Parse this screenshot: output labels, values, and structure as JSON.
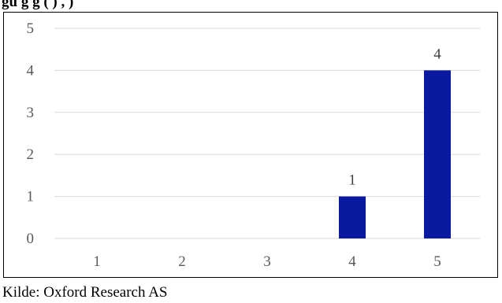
{
  "header": {
    "title_fragment": "gu           g        g (     )        , )"
  },
  "source_note": "Kilde: Oxford Research AS",
  "colors": {
    "bar": "#0A1AA0",
    "grid": "#D9D9D9",
    "axis_text": "#595959"
  },
  "chart_data": {
    "type": "bar",
    "categories": [
      "1",
      "2",
      "3",
      "4",
      "5"
    ],
    "series": [
      {
        "values": [
          0,
          0,
          0,
          1,
          4
        ]
      }
    ],
    "data_labels": [
      "",
      "",
      "",
      "1",
      "4"
    ],
    "title": "",
    "xlabel": "",
    "ylabel": "",
    "ylim": [
      0,
      5
    ],
    "yticks": [
      "0",
      "1",
      "2",
      "3",
      "4",
      "5"
    ],
    "grid": true,
    "legend": "none"
  }
}
